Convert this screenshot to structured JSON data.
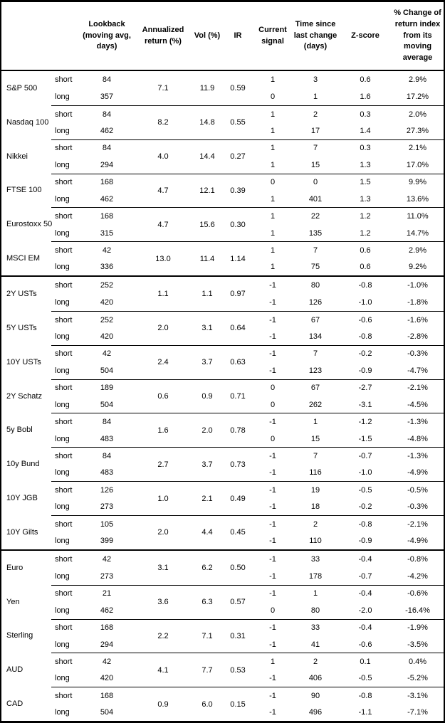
{
  "chart_data": {
    "type": "table",
    "headers": {
      "asset": "",
      "period": "",
      "lookback": "Lookback (moving avg, days)",
      "annualized": "Annualized return (%)",
      "vol": "Vol (%)",
      "ir": "IR",
      "signal": "Current signal",
      "time": "Time since last change (days)",
      "zscore": "Z-score",
      "change": "% Change of return index from its moving average"
    },
    "groups": [
      [
        {
          "name": "S&P 500",
          "annualized": "7.1",
          "vol": "11.9",
          "ir": "0.59",
          "rows": [
            {
              "period": "short",
              "lookback": "84",
              "signal": "1",
              "time": "3",
              "zscore": "0.6",
              "change": "2.9%"
            },
            {
              "period": "long",
              "lookback": "357",
              "signal": "0",
              "time": "1",
              "zscore": "1.6",
              "change": "17.2%"
            }
          ]
        },
        {
          "name": "Nasdaq 100",
          "annualized": "8.2",
          "vol": "14.8",
          "ir": "0.55",
          "rows": [
            {
              "period": "short",
              "lookback": "84",
              "signal": "1",
              "time": "2",
              "zscore": "0.3",
              "change": "2.0%"
            },
            {
              "period": "long",
              "lookback": "462",
              "signal": "1",
              "time": "17",
              "zscore": "1.4",
              "change": "27.3%"
            }
          ]
        },
        {
          "name": "Nikkei",
          "annualized": "4.0",
          "vol": "14.4",
          "ir": "0.27",
          "rows": [
            {
              "period": "short",
              "lookback": "84",
              "signal": "1",
              "time": "7",
              "zscore": "0.3",
              "change": "2.1%"
            },
            {
              "period": "long",
              "lookback": "294",
              "signal": "1",
              "time": "15",
              "zscore": "1.3",
              "change": "17.0%"
            }
          ]
        },
        {
          "name": "FTSE 100",
          "annualized": "4.7",
          "vol": "12.1",
          "ir": "0.39",
          "rows": [
            {
              "period": "short",
              "lookback": "168",
              "signal": "0",
              "time": "0",
              "zscore": "1.5",
              "change": "9.9%"
            },
            {
              "period": "long",
              "lookback": "462",
              "signal": "1",
              "time": "401",
              "zscore": "1.3",
              "change": "13.6%"
            }
          ]
        },
        {
          "name": "Eurostoxx 50",
          "annualized": "4.7",
          "vol": "15.6",
          "ir": "0.30",
          "rows": [
            {
              "period": "short",
              "lookback": "168",
              "signal": "1",
              "time": "22",
              "zscore": "1.2",
              "change": "11.0%"
            },
            {
              "period": "long",
              "lookback": "315",
              "signal": "1",
              "time": "135",
              "zscore": "1.2",
              "change": "14.7%"
            }
          ]
        },
        {
          "name": "MSCI EM",
          "annualized": "13.0",
          "vol": "11.4",
          "ir": "1.14",
          "rows": [
            {
              "period": "short",
              "lookback": "42",
              "signal": "1",
              "time": "7",
              "zscore": "0.6",
              "change": "2.9%"
            },
            {
              "period": "long",
              "lookback": "336",
              "signal": "1",
              "time": "75",
              "zscore": "0.6",
              "change": "9.2%"
            }
          ]
        }
      ],
      [
        {
          "name": "2Y USTs",
          "annualized": "1.1",
          "vol": "1.1",
          "ir": "0.97",
          "rows": [
            {
              "period": "short",
              "lookback": "252",
              "signal": "-1",
              "time": "80",
              "zscore": "-0.8",
              "change": "-1.0%"
            },
            {
              "period": "long",
              "lookback": "420",
              "signal": "-1",
              "time": "126",
              "zscore": "-1.0",
              "change": "-1.8%"
            }
          ]
        },
        {
          "name": "5Y USTs",
          "annualized": "2.0",
          "vol": "3.1",
          "ir": "0.64",
          "rows": [
            {
              "period": "short",
              "lookback": "252",
              "signal": "-1",
              "time": "67",
              "zscore": "-0.6",
              "change": "-1.6%"
            },
            {
              "period": "long",
              "lookback": "420",
              "signal": "-1",
              "time": "134",
              "zscore": "-0.8",
              "change": "-2.8%"
            }
          ]
        },
        {
          "name": "10Y USTs",
          "annualized": "2.4",
          "vol": "3.7",
          "ir": "0.63",
          "rows": [
            {
              "period": "short",
              "lookback": "42",
              "signal": "-1",
              "time": "7",
              "zscore": "-0.2",
              "change": "-0.3%"
            },
            {
              "period": "long",
              "lookback": "504",
              "signal": "-1",
              "time": "123",
              "zscore": "-0.9",
              "change": "-4.7%"
            }
          ]
        },
        {
          "name": "2Y Schatz",
          "annualized": "0.6",
          "vol": "0.9",
          "ir": "0.71",
          "rows": [
            {
              "period": "short",
              "lookback": "189",
              "signal": "0",
              "time": "67",
              "zscore": "-2.7",
              "change": "-2.1%"
            },
            {
              "period": "long",
              "lookback": "504",
              "signal": "0",
              "time": "262",
              "zscore": "-3.1",
              "change": "-4.5%"
            }
          ]
        },
        {
          "name": "5y Bobl",
          "annualized": "1.6",
          "vol": "2.0",
          "ir": "0.78",
          "rows": [
            {
              "period": "short",
              "lookback": "84",
              "signal": "-1",
              "time": "1",
              "zscore": "-1.2",
              "change": "-1.3%"
            },
            {
              "period": "long",
              "lookback": "483",
              "signal": "0",
              "time": "15",
              "zscore": "-1.5",
              "change": "-4.8%"
            }
          ]
        },
        {
          "name": "10y Bund",
          "annualized": "2.7",
          "vol": "3.7",
          "ir": "0.73",
          "rows": [
            {
              "period": "short",
              "lookback": "84",
              "signal": "-1",
              "time": "7",
              "zscore": "-0.7",
              "change": "-1.3%"
            },
            {
              "period": "long",
              "lookback": "483",
              "signal": "-1",
              "time": "116",
              "zscore": "-1.0",
              "change": "-4.9%"
            }
          ]
        },
        {
          "name": "10Y JGB",
          "annualized": "1.0",
          "vol": "2.1",
          "ir": "0.49",
          "rows": [
            {
              "period": "short",
              "lookback": "126",
              "signal": "-1",
              "time": "19",
              "zscore": "-0.5",
              "change": "-0.5%"
            },
            {
              "period": "long",
              "lookback": "273",
              "signal": "-1",
              "time": "18",
              "zscore": "-0.2",
              "change": "-0.3%"
            }
          ]
        },
        {
          "name": "10Y Gilts",
          "annualized": "2.0",
          "vol": "4.4",
          "ir": "0.45",
          "rows": [
            {
              "period": "short",
              "lookback": "105",
              "signal": "-1",
              "time": "2",
              "zscore": "-0.8",
              "change": "-2.1%"
            },
            {
              "period": "long",
              "lookback": "399",
              "signal": "-1",
              "time": "110",
              "zscore": "-0.9",
              "change": "-4.9%"
            }
          ]
        }
      ],
      [
        {
          "name": "Euro",
          "annualized": "3.1",
          "vol": "6.2",
          "ir": "0.50",
          "rows": [
            {
              "period": "short",
              "lookback": "42",
              "signal": "-1",
              "time": "33",
              "zscore": "-0.4",
              "change": "-0.8%"
            },
            {
              "period": "long",
              "lookback": "273",
              "signal": "-1",
              "time": "178",
              "zscore": "-0.7",
              "change": "-4.2%"
            }
          ]
        },
        {
          "name": "Yen",
          "annualized": "3.6",
          "vol": "6.3",
          "ir": "0.57",
          "rows": [
            {
              "period": "short",
              "lookback": "21",
              "signal": "-1",
              "time": "1",
              "zscore": "-0.4",
              "change": "-0.6%"
            },
            {
              "period": "long",
              "lookback": "462",
              "signal": "0",
              "time": "80",
              "zscore": "-2.0",
              "change": "-16.4%"
            }
          ]
        },
        {
          "name": "Sterling",
          "annualized": "2.2",
          "vol": "7.1",
          "ir": "0.31",
          "rows": [
            {
              "period": "short",
              "lookback": "168",
              "signal": "-1",
              "time": "33",
              "zscore": "-0.4",
              "change": "-1.9%"
            },
            {
              "period": "long",
              "lookback": "294",
              "signal": "-1",
              "time": "41",
              "zscore": "-0.6",
              "change": "-3.5%"
            }
          ]
        },
        {
          "name": "AUD",
          "annualized": "4.1",
          "vol": "7.7",
          "ir": "0.53",
          "rows": [
            {
              "period": "short",
              "lookback": "42",
              "signal": "1",
              "time": "2",
              "zscore": "0.1",
              "change": "0.4%"
            },
            {
              "period": "long",
              "lookback": "420",
              "signal": "-1",
              "time": "406",
              "zscore": "-0.5",
              "change": "-5.2%"
            }
          ]
        },
        {
          "name": "CAD",
          "annualized": "0.9",
          "vol": "6.0",
          "ir": "0.15",
          "rows": [
            {
              "period": "short",
              "lookback": "168",
              "signal": "-1",
              "time": "90",
              "zscore": "-0.8",
              "change": "-3.1%"
            },
            {
              "period": "long",
              "lookback": "504",
              "signal": "-1",
              "time": "496",
              "zscore": "-1.1",
              "change": "-7.1%"
            }
          ]
        }
      ]
    ]
  }
}
